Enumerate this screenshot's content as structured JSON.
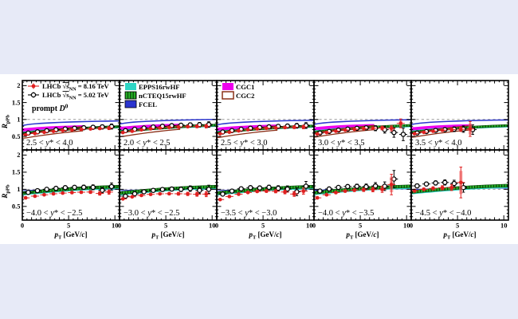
{
  "page": {
    "background": "#e7eaf7",
    "figure_background": "#ffffff"
  },
  "figure": {
    "ylabel": "{i:R}_[pPb]",
    "xlabel": "{i:p}_[T] [GeV/{i:c}]",
    "y_tick_labels": [
      "0.5",
      "1",
      "1.5",
      "2"
    ],
    "x_tick_labels": [
      "0",
      "5",
      "10"
    ],
    "reference_line_y": 1,
    "legend": {
      "lhcb_entries": [
        {
          "id": "lhcb-816",
          "marker": "red-filled-circle",
          "label": "LHCb {o:√s}_[NN] = 8.16 TeV"
        },
        {
          "id": "lhcb-502",
          "marker": "black-open-circle",
          "label": "LHCb {o:√s}_[NN] = 5.02 TeV"
        }
      ],
      "sample_label": "prompt {i:D}^[0]",
      "theory_pdf_entries": [
        {
          "id": "epps",
          "label": "EPPS16rwHF"
        },
        {
          "id": "ncteq",
          "label": "nCTEQ15rwHF"
        },
        {
          "id": "fcel",
          "label": "FCEL"
        }
      ],
      "theory_cgc_entries": [
        {
          "id": "cgc1",
          "label": "CGC1"
        },
        {
          "id": "cgc2",
          "label": "CGC2"
        }
      ]
    },
    "colors": {
      "red": "#e02020",
      "pink_box": "#f57070",
      "black": "#000000",
      "cyan": "#2fd5c5",
      "green": "#27b227",
      "green_dark": "#073f07",
      "blue": "#2b35cf",
      "magenta": "#ee00ee",
      "brown": "#8b3018",
      "dashed_gray": "#9a9a9a"
    }
  },
  "chart_data": {
    "type": "scatter",
    "title": "Nuclear modification factor R_pPb of prompt D0 mesons vs pT, LHCb pPb at 8.16 and 5.02 TeV, 5 forward and 5 backward rapidity panels",
    "xlabel": "p_T [GeV/c]",
    "ylabel": "R_pPb",
    "x_range": [
      0,
      10.5
    ],
    "y_range": [
      0.1,
      2.15
    ],
    "x_ticks": [
      0,
      5,
      10
    ],
    "y_ticks": [
      0.5,
      1,
      1.5,
      2
    ],
    "band_x": [
      0,
      0.5,
      1,
      1.5,
      2,
      3,
      4,
      5,
      6,
      7,
      8,
      9,
      10.5
    ],
    "cgc_x": [
      0,
      0.5,
      1,
      1.5,
      2,
      3,
      4,
      5,
      6,
      6.5
    ],
    "top_bands": {
      "fcel": {
        "c": [
          0.82,
          0.845,
          0.862,
          0.875,
          0.885,
          0.9,
          0.913,
          0.923,
          0.932,
          0.939,
          0.945,
          0.95,
          0.956
        ],
        "hw": 0.018
      },
      "epps": {
        "c": [
          0.6,
          0.615,
          0.63,
          0.645,
          0.657,
          0.678,
          0.696,
          0.712,
          0.727,
          0.74,
          0.752,
          0.763,
          0.778
        ],
        "hw": 0.04
      },
      "ncteq": {
        "c": [
          0.585,
          0.6,
          0.616,
          0.631,
          0.645,
          0.668,
          0.69,
          0.71,
          0.729,
          0.747,
          0.762,
          0.774,
          0.79
        ],
        "hw": 0.032
      },
      "cgc1": {
        "c": [
          0.69,
          0.7,
          0.712,
          0.723,
          0.733,
          0.749,
          0.762,
          0.772,
          0.779,
          0.782
        ],
        "hw": 0.048
      },
      "cgc2": {
        "c": [
          0.505,
          0.522,
          0.545,
          0.566,
          0.586,
          0.623,
          0.657,
          0.688,
          0.714,
          0.725
        ],
        "hw": 0.062
      }
    },
    "bottom_bands": {
      "fcel": {
        "c": [
          0.962,
          0.968,
          0.973,
          0.977,
          0.98,
          0.986,
          0.991,
          0.995,
          0.998,
          1.0,
          1.001,
          1.002,
          1.003
        ],
        "hw": 0.012
      },
      "epps": {
        "c": [
          0.87,
          0.885,
          0.898,
          0.911,
          0.922,
          0.946,
          0.968,
          0.988,
          1.005,
          1.02,
          1.032,
          1.042,
          1.055
        ],
        "hw": 0.05
      },
      "ncteq": {
        "c": [
          0.888,
          0.903,
          0.917,
          0.93,
          0.942,
          0.966,
          0.988,
          1.008,
          1.026,
          1.042,
          1.055,
          1.066,
          1.08
        ],
        "hw": 0.042
      }
    },
    "panels_top": [
      {
        "label": "2.5 < {i:y}* < 4.0",
        "band_shift": 0,
        "lhcb816": {
          "x": [
            0.5,
            1.5,
            2.5,
            3.5,
            4.5,
            5.5,
            6.5,
            7.5,
            8.5,
            9.5
          ],
          "y": [
            0.545,
            0.585,
            0.62,
            0.65,
            0.675,
            0.695,
            0.71,
            0.722,
            0.735,
            0.745
          ],
          "ey": [
            0.02,
            0.018,
            0.018,
            0.018,
            0.02,
            0.022,
            0.025,
            0.028,
            0.035,
            0.045
          ]
        },
        "lhcb502": {
          "x": [
            0.5,
            1.5,
            2.5,
            3.5,
            4.5,
            5.5,
            6.5,
            7.5,
            8.5,
            9.5
          ],
          "y": [
            0.6,
            0.635,
            0.668,
            0.697,
            0.72,
            0.74,
            0.756,
            0.77,
            0.781,
            0.792
          ],
          "ey": [
            0.03,
            0.028,
            0.028,
            0.03,
            0.034,
            0.038,
            0.044,
            0.052,
            0.062,
            0.075
          ]
        }
      },
      {
        "label": "2.0 < {i:y}* < 2.5",
        "band_shift": 0.045,
        "lhcb816": {
          "x": [
            0.5,
            1.5,
            2.5,
            3.5,
            4.5,
            5.5,
            6.5,
            7.5,
            8.5,
            9.5
          ],
          "y": [
            0.615,
            0.655,
            0.695,
            0.725,
            0.748,
            0.765,
            0.778,
            0.788,
            0.795,
            0.8
          ],
          "ey": [
            0.022,
            0.02,
            0.02,
            0.02,
            0.022,
            0.025,
            0.028,
            0.032,
            0.04,
            0.05
          ]
        },
        "lhcb502": {
          "x": [
            0.5,
            1.5,
            2.5,
            3.5,
            4.5,
            5.5,
            6.5,
            7.5,
            8.5,
            9.5
          ],
          "y": [
            0.67,
            0.71,
            0.748,
            0.778,
            0.8,
            0.818,
            0.83,
            0.84,
            0.845,
            0.85
          ],
          "ey": [
            0.032,
            0.03,
            0.03,
            0.032,
            0.036,
            0.042,
            0.048,
            0.058,
            0.068,
            0.082
          ]
        }
      },
      {
        "label": "2.5 < {i:y}* < 3.0",
        "band_shift": 0.02,
        "lhcb816": {
          "x": [
            0.5,
            1.5,
            2.5,
            3.5,
            4.5,
            5.5,
            6.5,
            7.5,
            8.5,
            9.5
          ],
          "y": [
            0.58,
            0.625,
            0.665,
            0.698,
            0.722,
            0.74,
            0.754,
            0.764,
            0.772,
            0.778
          ],
          "ey": [
            0.022,
            0.02,
            0.02,
            0.022,
            0.024,
            0.026,
            0.03,
            0.034,
            0.042,
            0.052
          ]
        },
        "lhcb502": {
          "x": [
            0.5,
            1.5,
            2.5,
            3.5,
            4.5,
            5.5,
            6.5,
            7.5,
            8.5,
            9.5
          ],
          "y": [
            0.63,
            0.672,
            0.71,
            0.74,
            0.764,
            0.782,
            0.796,
            0.806,
            0.814,
            0.822
          ],
          "ey": [
            0.032,
            0.03,
            0.03,
            0.034,
            0.038,
            0.044,
            0.05,
            0.06,
            0.07,
            0.085
          ]
        }
      },
      {
        "label": "3.0 < {i:y}* < 3.5",
        "band_shift": 0.035,
        "lhcb816": {
          "x": [
            0.5,
            1.5,
            2.5,
            3.5,
            4.5,
            5.5,
            6.5,
            7.5,
            8.5,
            9.5
          ],
          "y": [
            0.57,
            0.615,
            0.655,
            0.688,
            0.712,
            0.73,
            0.742,
            0.748,
            0.738,
            0.885
          ],
          "ey": [
            0.022,
            0.02,
            0.022,
            0.024,
            0.028,
            0.034,
            0.042,
            0.055,
            0.075,
            0.13
          ]
        },
        "lhcb502": {
          "x": [
            0.5,
            1.5,
            2.5,
            3.5,
            4.5,
            5.5,
            6.5,
            7.5,
            8.5,
            9.5
          ],
          "y": [
            0.6,
            0.645,
            0.685,
            0.715,
            0.738,
            0.752,
            0.742,
            0.698,
            0.615,
            0.56
          ],
          "ey": [
            0.032,
            0.03,
            0.032,
            0.038,
            0.046,
            0.058,
            0.075,
            0.1,
            0.14,
            0.185
          ]
        }
      },
      {
        "label": "3.5 < {i:y}* < 4.0",
        "band_shift": 0.03,
        "lhcb816": {
          "x": [
            0.5,
            1.5,
            2.5,
            3.5,
            4.5,
            5.5,
            6.5
          ],
          "y": [
            0.58,
            0.62,
            0.655,
            0.683,
            0.7,
            0.71,
            0.72
          ],
          "ey": [
            0.025,
            0.024,
            0.028,
            0.034,
            0.045,
            0.065,
            0.22
          ]
        },
        "lhcb502": {
          "x": [
            0.5,
            1.5,
            2.5,
            3.5,
            4.5,
            5.5,
            6.5
          ],
          "y": [
            0.6,
            0.642,
            0.675,
            0.7,
            0.712,
            0.716,
            0.7
          ],
          "ey": [
            0.036,
            0.034,
            0.04,
            0.05,
            0.068,
            0.095,
            0.14
          ]
        }
      }
    ],
    "panels_bottom": [
      {
        "label": "−4.0 < {i:y}* < −2.5",
        "band_shift": 0,
        "lhcb816": {
          "x": [
            0.5,
            1.5,
            2.5,
            3.5,
            4.5,
            5.5,
            6.5,
            7.5,
            8.5,
            9.5
          ],
          "y": [
            0.75,
            0.8,
            0.84,
            0.87,
            0.89,
            0.905,
            0.915,
            0.92,
            0.878,
            0.92
          ],
          "ey": [
            0.025,
            0.022,
            0.022,
            0.024,
            0.026,
            0.03,
            0.035,
            0.042,
            0.05,
            0.065
          ]
        },
        "lhcb502": {
          "x": [
            0.5,
            1.5,
            2.5,
            3.5,
            4.5,
            5.5,
            6.5,
            7.5,
            8.5,
            9.5
          ],
          "y": [
            0.91,
            0.96,
            1.0,
            1.028,
            1.048,
            1.058,
            1.06,
            1.058,
            0.97,
            1.08
          ],
          "ey": [
            0.04,
            0.036,
            0.036,
            0.04,
            0.045,
            0.052,
            0.06,
            0.072,
            0.085,
            0.105
          ]
        }
      },
      {
        "label": "−3.0 < {i:y}* < −2.5",
        "band_shift": 0,
        "lhcb816": {
          "x": [
            0.5,
            1.5,
            2.5,
            3.5,
            4.5,
            5.5,
            6.5,
            7.5,
            8.5,
            9.5
          ],
          "y": [
            0.72,
            0.78,
            0.822,
            0.852,
            0.868,
            0.872,
            0.87,
            0.865,
            0.855,
            0.86
          ],
          "ey": [
            0.026,
            0.024,
            0.024,
            0.026,
            0.03,
            0.034,
            0.04,
            0.048,
            0.058,
            0.075
          ]
        },
        "lhcb502": {
          "x": [
            0.5,
            1.5,
            2.5,
            3.5,
            4.5,
            5.5,
            6.5,
            7.5,
            8.5,
            9.5
          ],
          "y": [
            0.8,
            0.87,
            0.928,
            0.968,
            0.995,
            1.008,
            1.0,
            1.02,
            0.968,
            1.0
          ],
          "ey": [
            0.042,
            0.038,
            0.038,
            0.042,
            0.048,
            0.056,
            0.066,
            0.08,
            0.095,
            0.12
          ]
        }
      },
      {
        "label": "−3.5 < {i:y}* < −3.0",
        "band_shift": 0,
        "lhcb816": {
          "x": [
            0.5,
            1.5,
            2.5,
            3.5,
            4.5,
            5.5,
            6.5,
            7.5,
            8.5,
            9.5
          ],
          "y": [
            0.7,
            0.79,
            0.858,
            0.908,
            0.938,
            0.948,
            0.942,
            0.922,
            0.862,
            0.948
          ],
          "ey": [
            0.028,
            0.025,
            0.025,
            0.028,
            0.032,
            0.038,
            0.045,
            0.055,
            0.068,
            0.09
          ]
        },
        "lhcb502": {
          "x": [
            0.5,
            1.5,
            2.5,
            3.5,
            4.5,
            5.5,
            6.5,
            7.5,
            8.5,
            9.5
          ],
          "y": [
            0.86,
            0.948,
            1.015,
            1.048,
            1.04,
            1.058,
            1.03,
            1.008,
            0.928,
            1.09
          ],
          "ey": [
            0.045,
            0.04,
            0.04,
            0.045,
            0.052,
            0.062,
            0.075,
            0.092,
            0.112,
            0.14
          ]
        }
      },
      {
        "label": "−4.0 < {i:y}* < −3.5",
        "band_shift": 0.01,
        "lhcb816": {
          "x": [
            0.5,
            1.5,
            2.5,
            3.5,
            4.5,
            5.5,
            6.5,
            7.5,
            8.5
          ],
          "y": [
            0.75,
            0.84,
            0.905,
            0.948,
            0.974,
            0.986,
            0.992,
            1.0,
            1.14
          ],
          "ey": [
            0.03,
            0.028,
            0.03,
            0.034,
            0.04,
            0.05,
            0.065,
            0.09,
            0.3
          ]
        },
        "lhcb502": {
          "x": [
            0.5,
            1.5,
            2.5,
            3.5,
            4.5,
            5.5,
            6.5,
            7.5,
            8.5
          ],
          "y": [
            0.95,
            1.01,
            1.055,
            1.08,
            1.086,
            1.076,
            1.098,
            1.09,
            1.3
          ],
          "ey": [
            0.05,
            0.046,
            0.048,
            0.054,
            0.064,
            0.078,
            0.098,
            0.125,
            0.25
          ]
        }
      },
      {
        "label": "−4.5 < {i:y}* < −4.0",
        "band_shift": 0.03,
        "lhcb816": {
          "x": [
            0.5,
            1.5,
            2.5,
            3.5,
            4.5,
            5.5
          ],
          "y": [
            0.96,
            1.0,
            1.028,
            1.045,
            1.05,
            1.2
          ],
          "ey": [
            0.042,
            0.04,
            0.046,
            0.06,
            0.085,
            0.45
          ]
        },
        "lhcb502": {
          "x": [
            0.5,
            1.5,
            2.5,
            3.5,
            4.5,
            5.5
          ],
          "y": [
            1.1,
            1.155,
            1.185,
            1.2,
            1.17,
            1.05
          ],
          "ey": [
            0.058,
            0.055,
            0.062,
            0.075,
            0.095,
            0.135
          ]
        }
      }
    ]
  }
}
